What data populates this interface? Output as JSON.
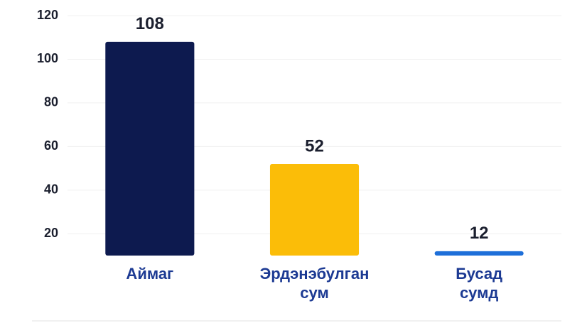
{
  "chart_data": {
    "type": "bar",
    "categories": [
      "Аймаг",
      "Эрдэнэбулган сум",
      "Бусад сумд"
    ],
    "values": [
      108,
      52,
      12
    ],
    "colors": [
      "#0d1a4f",
      "#fbbd08",
      "#1e6fd9"
    ],
    "ylim": [
      10,
      120
    ],
    "yticks": [
      20,
      40,
      60,
      80,
      100,
      120
    ],
    "grid": true
  }
}
